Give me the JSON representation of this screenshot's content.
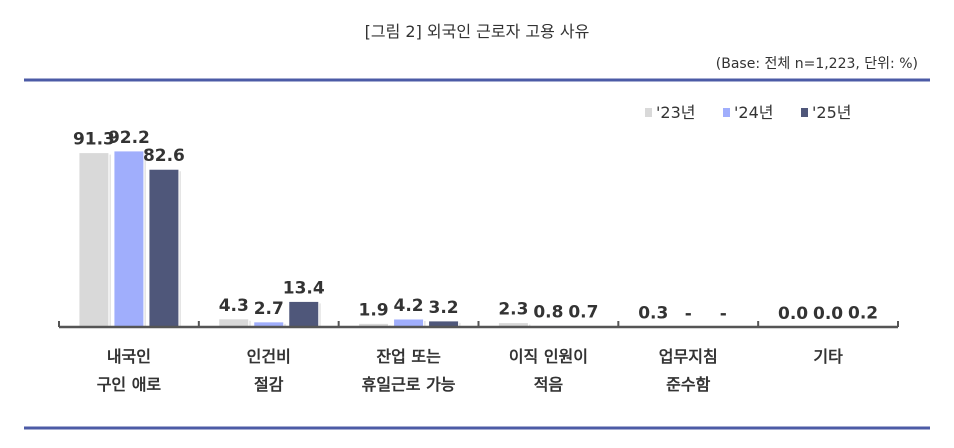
{
  "chart_data": {
    "type": "bar",
    "title": "[그림 2] 외국인 근로자 고용 사유",
    "subtitle": "(Base: 전체 n=1,223, 단위: %)",
    "xlabel": "",
    "ylabel": "",
    "ylim": [
      0,
      100
    ],
    "grid": false,
    "legend_position": "top-right",
    "categories": [
      [
        "내국인",
        "구인 애로"
      ],
      [
        "인건비",
        "절감"
      ],
      [
        "잔업 또는",
        "휴일근로 가능"
      ],
      [
        "이직 인원이",
        "적음"
      ],
      [
        "업무지침",
        "준수함"
      ],
      [
        "기타"
      ]
    ],
    "series": [
      {
        "name": "'23년",
        "color": "#d9d9d9",
        "values": [
          91.3,
          4.3,
          1.9,
          2.3,
          0.3,
          0.0
        ]
      },
      {
        "name": "'24년",
        "color": "#a0aefc",
        "values": [
          92.2,
          2.7,
          4.2,
          0.8,
          null,
          0.0
        ]
      },
      {
        "name": "'25년",
        "color": "#4f577a",
        "values": [
          82.6,
          13.4,
          3.2,
          0.7,
          null,
          0.2
        ]
      }
    ],
    "missing_label": "-"
  }
}
